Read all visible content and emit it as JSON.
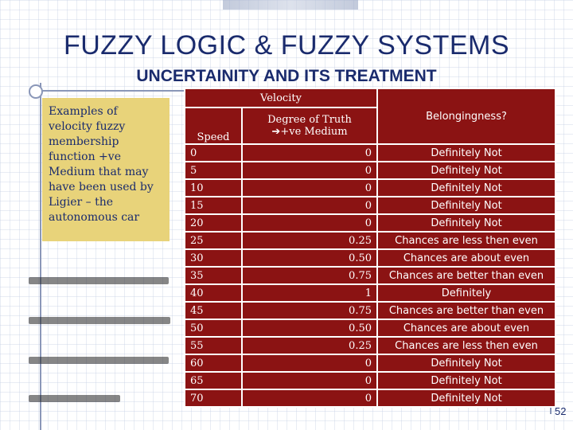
{
  "slide": {
    "title": "FUZZY LOGIC & FUZZY SYSTEMS",
    "subtitle": "UNCERTAINITY AND ITS TREATMENT",
    "note": "Examples of velocity fuzzy membership function +ve Medium that may have been used by Ligier – the autonomous car",
    "page_number": "52"
  },
  "table": {
    "header_velocity": "Velocity",
    "header_speed": "Speed",
    "header_degree": "Degree of Truth",
    "header_degree_sub": "+ve Medium",
    "header_belong": "Belongingness?",
    "rows": [
      {
        "speed": "0",
        "degree": "0",
        "belong": "Definitely Not"
      },
      {
        "speed": "5",
        "degree": "0",
        "belong": "Definitely Not"
      },
      {
        "speed": "10",
        "degree": "0",
        "belong": "Definitely Not"
      },
      {
        "speed": "15",
        "degree": "0",
        "belong": "Definitely Not"
      },
      {
        "speed": "20",
        "degree": "0",
        "belong": "Definitely Not"
      },
      {
        "speed": "25",
        "degree": "0.25",
        "belong": "Chances are less then even"
      },
      {
        "speed": "30",
        "degree": "0.50",
        "belong": "Chances are about even"
      },
      {
        "speed": "35",
        "degree": "0.75",
        "belong": "Chances are better than even"
      },
      {
        "speed": "40",
        "degree": "1",
        "belong": "Definitely"
      },
      {
        "speed": "45",
        "degree": "0.75",
        "belong": "Chances are better than even"
      },
      {
        "speed": "50",
        "degree": "0.50",
        "belong": "Chances are about even"
      },
      {
        "speed": "55",
        "degree": "0.25",
        "belong": "Chances are less then even"
      },
      {
        "speed": "60",
        "degree": "0",
        "belong": "Definitely Not"
      },
      {
        "speed": "65",
        "degree": "0",
        "belong": "Definitely Not"
      },
      {
        "speed": "70",
        "degree": "0",
        "belong": "Definitely Not"
      }
    ]
  },
  "colors": {
    "table_fill": "#8b1313",
    "note_fill": "#e8d37a",
    "title_color": "#1a2b6d"
  }
}
